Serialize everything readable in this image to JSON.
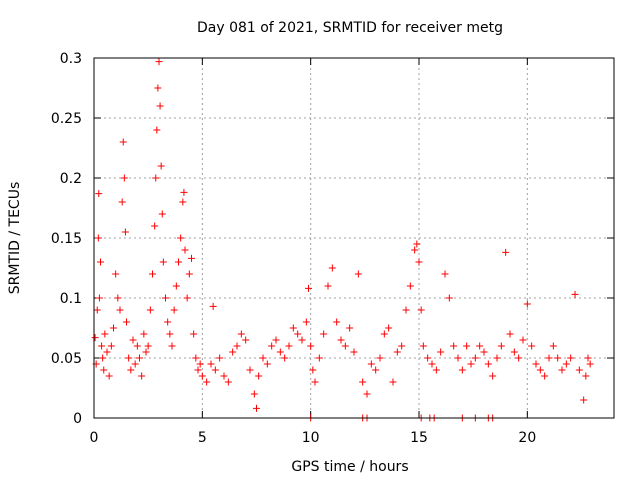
{
  "chart_data": {
    "type": "scatter",
    "title": "Day 081 of 2021, SRMTID for receiver metg",
    "xlabel": "GPS time / hours",
    "ylabel": "SRMTID / TECUs",
    "xlim": [
      0,
      24
    ],
    "ylim": [
      0,
      0.3
    ],
    "x_ticks": [
      0,
      5,
      10,
      15,
      20
    ],
    "x_tick_labels": [
      "0",
      "5",
      "10",
      "15",
      "20"
    ],
    "y_ticks": [
      0,
      0.05,
      0.1,
      0.15,
      0.2,
      0.25,
      0.3
    ],
    "y_tick_labels": [
      "0",
      "0.05",
      "0.1",
      "0.15",
      "0.2",
      "0.25",
      "0.3"
    ],
    "grid": true,
    "marker": "plus",
    "series": [
      {
        "name": "SRMTID",
        "color": "#ff0000",
        "points": [
          [
            0.05,
            0.067
          ],
          [
            0.1,
            0.045
          ],
          [
            0.15,
            0.09
          ],
          [
            0.2,
            0.15
          ],
          [
            0.22,
            0.187
          ],
          [
            0.25,
            0.1
          ],
          [
            0.3,
            0.13
          ],
          [
            0.35,
            0.06
          ],
          [
            0.4,
            0.05
          ],
          [
            0.45,
            0.04
          ],
          [
            0.5,
            0.07
          ],
          [
            0.6,
            0.055
          ],
          [
            0.7,
            0.035
          ],
          [
            0.8,
            0.06
          ],
          [
            0.9,
            0.075
          ],
          [
            1.0,
            0.12
          ],
          [
            1.1,
            0.1
          ],
          [
            1.2,
            0.09
          ],
          [
            1.3,
            0.18
          ],
          [
            1.35,
            0.23
          ],
          [
            1.4,
            0.2
          ],
          [
            1.45,
            0.155
          ],
          [
            1.5,
            0.08
          ],
          [
            1.6,
            0.05
          ],
          [
            1.7,
            0.04
          ],
          [
            1.8,
            0.065
          ],
          [
            1.9,
            0.045
          ],
          [
            2.0,
            0.06
          ],
          [
            2.1,
            0.05
          ],
          [
            2.2,
            0.035
          ],
          [
            2.3,
            0.07
          ],
          [
            2.4,
            0.055
          ],
          [
            2.5,
            0.06
          ],
          [
            2.6,
            0.09
          ],
          [
            2.7,
            0.12
          ],
          [
            2.8,
            0.16
          ],
          [
            2.85,
            0.2
          ],
          [
            2.9,
            0.24
          ],
          [
            2.95,
            0.275
          ],
          [
            3.0,
            0.297
          ],
          [
            3.05,
            0.26
          ],
          [
            3.1,
            0.21
          ],
          [
            3.15,
            0.17
          ],
          [
            3.2,
            0.13
          ],
          [
            3.3,
            0.1
          ],
          [
            3.4,
            0.08
          ],
          [
            3.5,
            0.07
          ],
          [
            3.6,
            0.06
          ],
          [
            3.7,
            0.09
          ],
          [
            3.8,
            0.11
          ],
          [
            3.9,
            0.13
          ],
          [
            4.0,
            0.15
          ],
          [
            4.1,
            0.18
          ],
          [
            4.15,
            0.188
          ],
          [
            4.2,
            0.14
          ],
          [
            4.3,
            0.1
          ],
          [
            4.4,
            0.12
          ],
          [
            4.5,
            0.133
          ],
          [
            4.6,
            0.07
          ],
          [
            4.7,
            0.05
          ],
          [
            4.8,
            0.04
          ],
          [
            4.9,
            0.045
          ],
          [
            5.0,
            0.035
          ],
          [
            5.2,
            0.03
          ],
          [
            5.4,
            0.045
          ],
          [
            5.5,
            0.093
          ],
          [
            5.6,
            0.04
          ],
          [
            5.8,
            0.05
          ],
          [
            6.0,
            0.035
          ],
          [
            6.2,
            0.03
          ],
          [
            6.4,
            0.055
          ],
          [
            6.6,
            0.06
          ],
          [
            6.8,
            0.07
          ],
          [
            7.0,
            0.065
          ],
          [
            7.2,
            0.04
          ],
          [
            7.4,
            0.02
          ],
          [
            7.5,
            0.008
          ],
          [
            7.6,
            0.035
          ],
          [
            7.8,
            0.05
          ],
          [
            8.0,
            0.045
          ],
          [
            8.2,
            0.06
          ],
          [
            8.4,
            0.065
          ],
          [
            8.6,
            0.055
          ],
          [
            8.8,
            0.05
          ],
          [
            9.0,
            0.06
          ],
          [
            9.2,
            0.075
          ],
          [
            9.4,
            0.07
          ],
          [
            9.6,
            0.065
          ],
          [
            9.8,
            0.08
          ],
          [
            9.9,
            0.108
          ],
          [
            10.0,
            0.06
          ],
          [
            10.1,
            0.04
          ],
          [
            10.2,
            0.03
          ],
          [
            10.4,
            0.05
          ],
          [
            10.6,
            0.07
          ],
          [
            10.8,
            0.11
          ],
          [
            11.0,
            0.125
          ],
          [
            11.2,
            0.08
          ],
          [
            11.4,
            0.065
          ],
          [
            11.6,
            0.06
          ],
          [
            11.8,
            0.075
          ],
          [
            12.0,
            0.055
          ],
          [
            12.2,
            0.12
          ],
          [
            12.4,
            0.03
          ],
          [
            12.6,
            0.02
          ],
          [
            12.8,
            0.045
          ],
          [
            13.0,
            0.04
          ],
          [
            13.2,
            0.05
          ],
          [
            13.4,
            0.07
          ],
          [
            13.6,
            0.075
          ],
          [
            13.8,
            0.03
          ],
          [
            14.0,
            0.055
          ],
          [
            14.2,
            0.06
          ],
          [
            14.4,
            0.09
          ],
          [
            14.6,
            0.11
          ],
          [
            14.8,
            0.14
          ],
          [
            14.9,
            0.145
          ],
          [
            15.0,
            0.13
          ],
          [
            15.1,
            0.09
          ],
          [
            15.2,
            0.06
          ],
          [
            15.4,
            0.05
          ],
          [
            15.6,
            0.045
          ],
          [
            15.8,
            0.04
          ],
          [
            16.0,
            0.055
          ],
          [
            16.2,
            0.12
          ],
          [
            16.4,
            0.1
          ],
          [
            16.6,
            0.06
          ],
          [
            16.8,
            0.05
          ],
          [
            17.0,
            0.04
          ],
          [
            17.2,
            0.06
          ],
          [
            17.4,
            0.045
          ],
          [
            17.6,
            0.05
          ],
          [
            17.8,
            0.06
          ],
          [
            18.0,
            0.055
          ],
          [
            18.2,
            0.045
          ],
          [
            18.4,
            0.035
          ],
          [
            18.6,
            0.05
          ],
          [
            18.8,
            0.06
          ],
          [
            19.0,
            0.138
          ],
          [
            19.2,
            0.07
          ],
          [
            19.4,
            0.055
          ],
          [
            19.6,
            0.05
          ],
          [
            19.8,
            0.065
          ],
          [
            20.0,
            0.095
          ],
          [
            20.2,
            0.06
          ],
          [
            20.4,
            0.045
          ],
          [
            20.6,
            0.04
          ],
          [
            20.8,
            0.035
          ],
          [
            21.0,
            0.05
          ],
          [
            21.2,
            0.06
          ],
          [
            21.4,
            0.05
          ],
          [
            21.6,
            0.04
          ],
          [
            21.8,
            0.045
          ],
          [
            22.0,
            0.05
          ],
          [
            22.2,
            0.103
          ],
          [
            22.4,
            0.04
          ],
          [
            22.6,
            0.015
          ],
          [
            22.7,
            0.035
          ],
          [
            22.8,
            0.05
          ],
          [
            22.9,
            0.045
          ],
          [
            10.0,
            0.0
          ],
          [
            12.4,
            0.0
          ],
          [
            12.6,
            0.0
          ],
          [
            15.1,
            0.0
          ],
          [
            15.5,
            0.0
          ],
          [
            15.7,
            0.0
          ],
          [
            17.0,
            0.0
          ],
          [
            17.6,
            0.0
          ],
          [
            18.2,
            0.0
          ],
          [
            18.4,
            0.0
          ]
        ]
      }
    ]
  }
}
